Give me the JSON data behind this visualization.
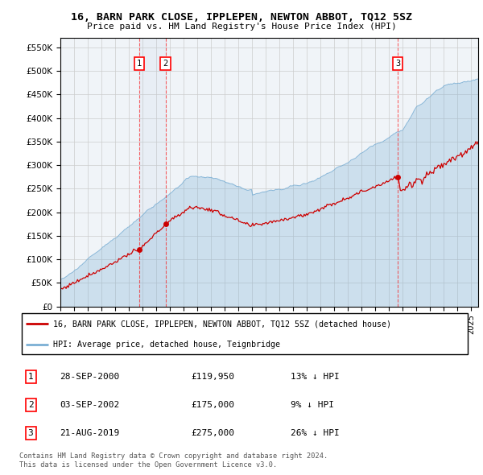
{
  "title": "16, BARN PARK CLOSE, IPPLEPEN, NEWTON ABBOT, TQ12 5SZ",
  "subtitle": "Price paid vs. HM Land Registry's House Price Index (HPI)",
  "ytick_values": [
    0,
    50000,
    100000,
    150000,
    200000,
    250000,
    300000,
    350000,
    400000,
    450000,
    500000,
    550000
  ],
  "ylim": [
    0,
    570000
  ],
  "xlim_start": 1995.0,
  "xlim_end": 2025.5,
  "legend_line1": "16, BARN PARK CLOSE, IPPLEPEN, NEWTON ABBOT, TQ12 5SZ (detached house)",
  "legend_line2": "HPI: Average price, detached house, Teignbridge",
  "sale1_year": 2000.75,
  "sale1_value": 119950,
  "sale2_year": 2002.67,
  "sale2_value": 175000,
  "sale3_year": 2019.63,
  "sale3_value": 275000,
  "red_color": "#cc0000",
  "blue_color": "#7bafd4",
  "blue_fill": "#ddeeff",
  "footer1": "Contains HM Land Registry data © Crown copyright and database right 2024.",
  "footer2": "This data is licensed under the Open Government Licence v3.0.",
  "background_color": "#ffffff",
  "grid_color": "#cccccc",
  "table_rows": [
    [
      "1",
      "28-SEP-2000",
      "£119,950",
      "13% ↓ HPI"
    ],
    [
      "2",
      "03-SEP-2002",
      "£175,000",
      "9% ↓ HPI"
    ],
    [
      "3",
      "21-AUG-2019",
      "£275,000",
      "26% ↓ HPI"
    ]
  ]
}
